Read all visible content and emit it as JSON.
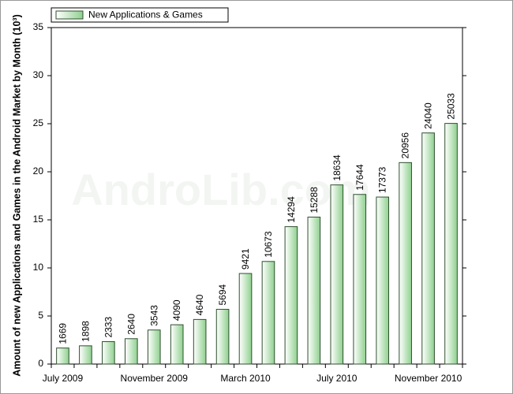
{
  "chart_data": {
    "type": "bar",
    "ylabel": "Amount of new Applications and Games in the Android Market by Month (10³)",
    "watermark": "AndroLib.com",
    "categories": [
      "July 2009",
      null,
      null,
      null,
      "November 2009",
      null,
      null,
      null,
      "March 2010",
      null,
      null,
      null,
      "July 2010",
      null,
      null,
      null,
      "November 2010",
      null
    ],
    "series": [
      {
        "name": "New Applications & Games",
        "color": "#8fd08f",
        "values": [
          1.669,
          1.898,
          2.333,
          2.64,
          3.543,
          4.09,
          4.64,
          5.694,
          9.421,
          10.673,
          14.294,
          15.288,
          18.634,
          17.644,
          17.373,
          20.956,
          24.04,
          25.033
        ],
        "value_labels": [
          "1669",
          "1898",
          "2333",
          "2640",
          "3543",
          "4090",
          "4640",
          "5694",
          "9421",
          "10673",
          "14294",
          "15288",
          "18634",
          "17644",
          "17373",
          "20956",
          "24040",
          "25033"
        ]
      }
    ],
    "ylim": [
      0,
      35
    ],
    "yticks": [
      0,
      5,
      10,
      15,
      20,
      25,
      30,
      35
    ],
    "legend": "top-left"
  }
}
